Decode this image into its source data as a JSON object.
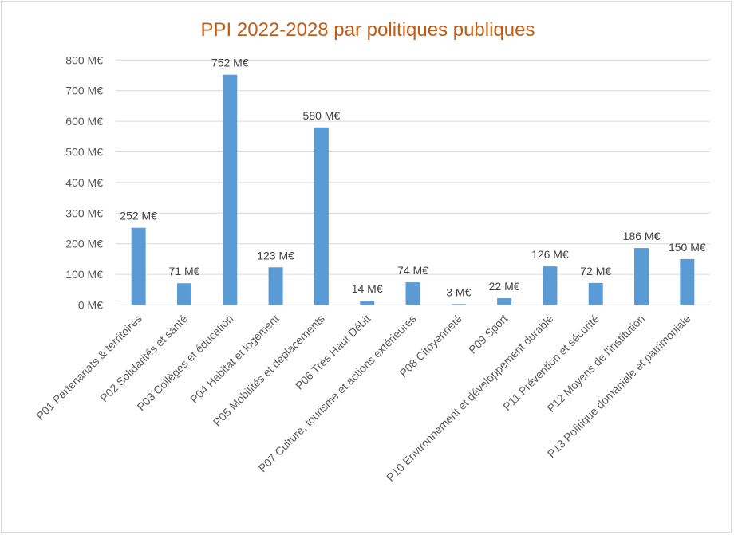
{
  "chart_data": {
    "type": "bar",
    "title": "PPI 2022-2028 par politiques publiques",
    "categories": [
      "P01 Partenariats & territoires",
      "P02 Solidarités et santé",
      "P03 Collèges et éducation",
      "P04 Habitat et logement",
      "P05 Mobilités et déplacements",
      "P06 Très Haut Débit",
      "P07 Culture, tourisme et actions extérieures",
      "P08 Citoyenneté",
      "P09 Sport",
      "P10 Environnement et développement durable",
      "P11 Prévention et sécurité",
      "P12 Moyens de l'institution",
      "P13 Politique domaniale et patrimoniale"
    ],
    "values": [
      252,
      71,
      752,
      123,
      580,
      14,
      74,
      3,
      22,
      126,
      72,
      186,
      150
    ],
    "data_labels": [
      "252 M€",
      "71 M€",
      "752 M€",
      "123 M€",
      "580 M€",
      "14 M€",
      "74 M€",
      "3 M€",
      "22 M€",
      "126 M€",
      "72 M€",
      "186 M€",
      "150 M€"
    ],
    "y_ticks": [
      "0 M€",
      "100 M€",
      "200 M€",
      "300 M€",
      "400 M€",
      "500 M€",
      "600 M€",
      "700 M€",
      "800 M€"
    ],
    "ylim": [
      0,
      800
    ],
    "grid": true,
    "legend": "none",
    "colors": {
      "bar": "#5b9bd5",
      "title": "#c55a11",
      "grid": "#d9d9d9"
    }
  }
}
